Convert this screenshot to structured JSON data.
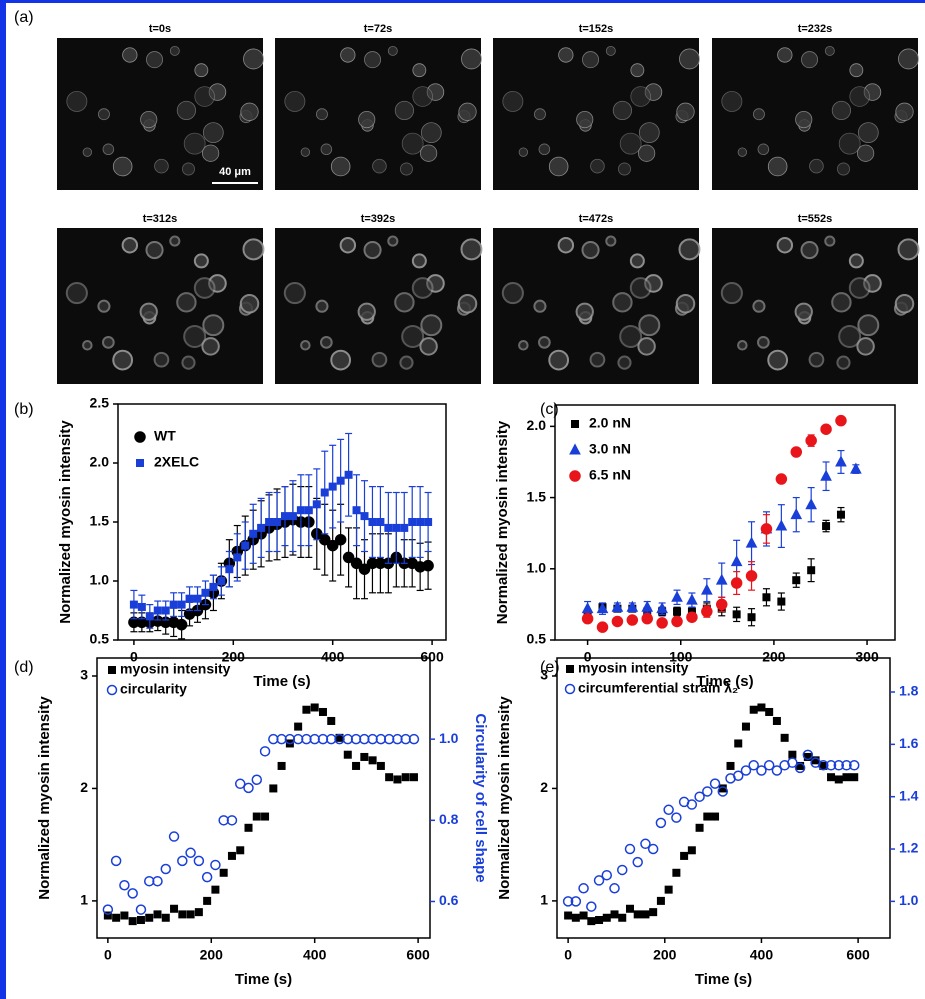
{
  "panel_labels": [
    "(a)",
    "(b)",
    "(c)",
    "(d)",
    "(e)"
  ],
  "images": {
    "titles": [
      "t=0s",
      "t=72s",
      "t=152s",
      "t=232s",
      "t=312s",
      "t=392s",
      "t=472s",
      "t=552s"
    ],
    "scale_bar": "40 μm"
  },
  "chart_data": [
    {
      "type": "scatter",
      "xlabel": "Time (s)",
      "ylabel": "Normalized myosin intensity",
      "xlim": [
        -32,
        628
      ],
      "ylim": [
        0.5,
        2.5
      ],
      "xticks": [
        0,
        200,
        400,
        600
      ],
      "yticks": [
        0.5,
        {
          "value": 1,
          "label": "1.0"
        },
        1.5,
        {
          "value": 2,
          "label": "2.0"
        },
        2.5
      ],
      "legend": "upper left",
      "series": [
        {
          "name": "WT",
          "color": "#000000",
          "marker": "circle",
          "filled": true,
          "x": [
            0,
            16,
            32,
            48,
            64,
            80,
            96,
            112,
            128,
            144,
            160,
            176,
            192,
            208,
            224,
            240,
            256,
            272,
            288,
            304,
            320,
            336,
            352,
            368,
            384,
            400,
            416,
            432,
            448,
            464,
            480,
            496,
            512,
            528,
            544,
            560,
            576,
            592
          ],
          "values": [
            0.65,
            0.65,
            0.65,
            0.66,
            0.65,
            0.65,
            0.63,
            0.72,
            0.75,
            0.8,
            0.9,
            1.0,
            1.15,
            1.25,
            1.3,
            1.35,
            1.4,
            1.45,
            1.48,
            1.5,
            1.52,
            1.5,
            1.5,
            1.4,
            1.35,
            1.3,
            1.35,
            1.2,
            1.15,
            1.1,
            1.15,
            1.15,
            1.15,
            1.2,
            1.15,
            1.15,
            1.12,
            1.13
          ],
          "errors": [
            0.08,
            0.08,
            0.08,
            0.08,
            0.1,
            0.12,
            0.12,
            0.1,
            0.1,
            0.12,
            0.15,
            0.15,
            0.2,
            0.22,
            0.25,
            0.25,
            0.28,
            0.28,
            0.3,
            0.3,
            0.3,
            0.3,
            0.3,
            0.3,
            0.3,
            0.3,
            0.3,
            0.25,
            0.3,
            0.25,
            0.25,
            0.25,
            0.25,
            0.25,
            0.2,
            0.2,
            0.2,
            0.2
          ]
        },
        {
          "name": "2XELC",
          "color": "#1a3fd8",
          "marker": "square",
          "filled": true,
          "x": [
            0,
            16,
            32,
            48,
            64,
            80,
            96,
            112,
            128,
            144,
            160,
            176,
            192,
            208,
            224,
            240,
            256,
            272,
            288,
            304,
            320,
            336,
            352,
            368,
            384,
            400,
            416,
            432,
            448,
            464,
            480,
            496,
            512,
            528,
            544,
            560,
            576,
            592
          ],
          "values": [
            0.8,
            0.78,
            0.7,
            0.75,
            0.75,
            0.8,
            0.8,
            0.85,
            0.85,
            0.9,
            0.95,
            1.0,
            1.1,
            1.2,
            1.3,
            1.4,
            1.45,
            1.5,
            1.5,
            1.55,
            1.55,
            1.6,
            1.6,
            1.65,
            1.75,
            1.8,
            1.85,
            1.9,
            1.6,
            1.55,
            1.5,
            1.5,
            1.45,
            1.45,
            1.45,
            1.5,
            1.5,
            1.5
          ],
          "errors": [
            0.12,
            0.1,
            0.1,
            0.08,
            0.08,
            0.1,
            0.1,
            0.1,
            0.1,
            0.1,
            0.1,
            0.12,
            0.15,
            0.2,
            0.2,
            0.25,
            0.25,
            0.25,
            0.25,
            0.25,
            0.3,
            0.3,
            0.3,
            0.3,
            0.35,
            0.35,
            0.35,
            0.35,
            0.3,
            0.3,
            0.3,
            0.3,
            0.3,
            0.3,
            0.3,
            0.3,
            0.3,
            0.25
          ]
        }
      ]
    },
    {
      "type": "scatter",
      "xlabel": "Time (s)",
      "ylabel": "Normalized myosin intensity",
      "xlim": [
        -35,
        330
      ],
      "ylim": [
        0.5,
        2.15
      ],
      "xticks": [
        0,
        100,
        200,
        300
      ],
      "yticks": [
        0.5,
        {
          "value": 1,
          "label": "1.0"
        },
        1.5,
        {
          "value": 2,
          "label": "2.0"
        }
      ],
      "legend": "upper left",
      "series": [
        {
          "name": "2.0 nN",
          "color": "#000000",
          "marker": "square",
          "filled": true,
          "x": [
            0,
            16,
            32,
            48,
            64,
            80,
            96,
            112,
            128,
            144,
            160,
            176,
            192,
            208,
            224,
            240,
            256,
            272
          ],
          "values": [
            0.68,
            0.73,
            0.72,
            0.72,
            0.7,
            0.7,
            0.7,
            0.7,
            0.72,
            0.72,
            0.68,
            0.66,
            0.8,
            0.77,
            0.92,
            0.99,
            1.3,
            1.38
          ],
          "errors": [
            0.03,
            0.02,
            0.02,
            0.02,
            0.02,
            0.03,
            0.03,
            0.03,
            0.04,
            0.05,
            0.05,
            0.06,
            0.06,
            0.06,
            0.05,
            0.08,
            0.04,
            0.05
          ]
        },
        {
          "name": "3.0 nN",
          "color": "#1a3fd8",
          "marker": "triangle",
          "filled": true,
          "x": [
            0,
            16,
            32,
            48,
            64,
            80,
            96,
            112,
            128,
            144,
            160,
            176,
            192,
            208,
            224,
            240,
            256,
            272,
            288
          ],
          "values": [
            0.72,
            0.72,
            0.73,
            0.73,
            0.73,
            0.72,
            0.8,
            0.78,
            0.85,
            0.92,
            1.05,
            1.18,
            1.28,
            1.3,
            1.38,
            1.45,
            1.65,
            1.75,
            1.7
          ],
          "errors": [
            0.05,
            0.04,
            0.03,
            0.03,
            0.04,
            0.04,
            0.05,
            0.05,
            0.08,
            0.12,
            0.15,
            0.15,
            0.12,
            0.15,
            0.12,
            0.12,
            0.1,
            0.08,
            0.03
          ]
        },
        {
          "name": "6.5 nN",
          "color": "#e8151b",
          "marker": "circle",
          "filled": true,
          "x": [
            0,
            16,
            32,
            48,
            64,
            80,
            96,
            112,
            128,
            144,
            160,
            176,
            192,
            208,
            224,
            240,
            256,
            272
          ],
          "values": [
            0.65,
            0.59,
            0.63,
            0.64,
            0.65,
            0.62,
            0.63,
            0.66,
            0.7,
            0.75,
            0.9,
            0.95,
            1.28,
            1.63,
            1.82,
            1.9,
            1.98,
            2.04
          ],
          "errors": [
            0.03,
            0.02,
            0.02,
            0.02,
            0.02,
            0.02,
            0.02,
            0.03,
            0.04,
            0.05,
            0.08,
            0.1,
            0.1,
            0.02,
            0.02,
            0.04,
            0.02,
            0.02
          ]
        }
      ]
    },
    {
      "type": "scatter",
      "xlabel": "Time (s)",
      "ylabel": "Normalized myosin intensity",
      "y2label": "Circularity of cell shape",
      "xlim": [
        -21,
        623
      ],
      "ylim": [
        0.67,
        3.16
      ],
      "y2lim": [
        0.51,
        1.2
      ],
      "xticks": [
        0,
        200,
        400,
        600
      ],
      "yticks": [
        1,
        2,
        3
      ],
      "y2ticks": [
        0.6,
        0.8,
        {
          "value": 1,
          "label": "1.0"
        }
      ],
      "y2color": "#1a3fd8",
      "legend": "upper left",
      "series": [
        {
          "name": "myosin intensity",
          "color": "#000000",
          "marker": "square",
          "filled": true,
          "x": [
            0,
            16,
            32,
            48,
            64,
            80,
            96,
            112,
            128,
            144,
            160,
            176,
            192,
            208,
            224,
            240,
            256,
            272,
            288,
            304,
            320,
            336,
            352,
            368,
            384,
            400,
            416,
            432,
            448,
            464,
            480,
            496,
            512,
            528,
            544,
            560,
            576,
            592
          ],
          "values": [
            0.87,
            0.85,
            0.87,
            0.82,
            0.83,
            0.85,
            0.88,
            0.85,
            0.93,
            0.88,
            0.88,
            0.9,
            1.0,
            1.1,
            1.25,
            1.4,
            1.45,
            1.65,
            1.75,
            1.75,
            2.0,
            2.2,
            2.4,
            2.55,
            2.7,
            2.72,
            2.68,
            2.6,
            2.45,
            2.3,
            2.2,
            2.28,
            2.25,
            2.2,
            2.1,
            2.08,
            2.1,
            2.1
          ]
        },
        {
          "name": "circularity",
          "color": "#1a3fd8",
          "marker": "circle",
          "filled": false,
          "axis": "y2",
          "x": [
            0,
            16,
            32,
            48,
            64,
            80,
            96,
            112,
            128,
            144,
            160,
            176,
            192,
            208,
            224,
            240,
            256,
            272,
            288,
            304,
            320,
            336,
            352,
            368,
            384,
            400,
            416,
            432,
            448,
            464,
            480,
            496,
            512,
            528,
            544,
            560,
            576,
            592
          ],
          "values": [
            0.58,
            0.7,
            0.64,
            0.62,
            0.58,
            0.65,
            0.65,
            0.68,
            0.76,
            0.7,
            0.72,
            0.7,
            0.66,
            0.69,
            0.8,
            0.8,
            0.89,
            0.88,
            0.9,
            0.97,
            1.0,
            1.0,
            1.0,
            1.0,
            1.0,
            1.0,
            1.0,
            1.0,
            1.0,
            1.0,
            1.0,
            1.0,
            1.0,
            1.0,
            1.0,
            1.0,
            1.0,
            1.0
          ]
        }
      ]
    },
    {
      "type": "scatter",
      "xlabel": "Time (s)",
      "ylabel": "Normalized myosin intensity",
      "y2label": "Circumferential strain λ₂",
      "xlim": [
        -23,
        666
      ],
      "ylim": [
        0.67,
        3.16
      ],
      "y2lim": [
        0.86,
        1.93
      ],
      "xticks": [
        0,
        200,
        400,
        600
      ],
      "yticks": [
        1,
        2,
        3
      ],
      "y2ticks": [
        {
          "value": 1,
          "label": "1.0"
        },
        1.2,
        1.4,
        1.6,
        1.8
      ],
      "y2color": "#1a3fd8",
      "legend": "upper left",
      "series": [
        {
          "name": "myosin intensity",
          "color": "#000000",
          "marker": "square",
          "filled": true,
          "x": [
            0,
            16,
            32,
            48,
            64,
            80,
            96,
            112,
            128,
            144,
            160,
            176,
            192,
            208,
            224,
            240,
            256,
            272,
            288,
            304,
            320,
            336,
            352,
            368,
            384,
            400,
            416,
            432,
            448,
            464,
            480,
            496,
            512,
            528,
            544,
            560,
            576,
            592
          ],
          "values": [
            0.87,
            0.85,
            0.87,
            0.82,
            0.83,
            0.85,
            0.88,
            0.85,
            0.93,
            0.88,
            0.88,
            0.9,
            1.0,
            1.1,
            1.25,
            1.4,
            1.45,
            1.65,
            1.75,
            1.75,
            2.0,
            2.2,
            2.4,
            2.55,
            2.7,
            2.72,
            2.68,
            2.6,
            2.45,
            2.3,
            2.2,
            2.28,
            2.25,
            2.2,
            2.1,
            2.08,
            2.1,
            2.1
          ]
        },
        {
          "name": "circumferential strain λ₂",
          "color": "#1a3fd8",
          "marker": "circle",
          "filled": false,
          "axis": "y2",
          "x": [
            0,
            16,
            32,
            48,
            64,
            80,
            96,
            112,
            128,
            144,
            160,
            176,
            192,
            208,
            224,
            240,
            256,
            272,
            288,
            304,
            320,
            336,
            352,
            368,
            384,
            400,
            416,
            432,
            448,
            464,
            480,
            496,
            512,
            528,
            544,
            560,
            576,
            592
          ],
          "values": [
            1.0,
            1.0,
            1.05,
            0.98,
            1.08,
            1.1,
            1.05,
            1.12,
            1.2,
            1.15,
            1.22,
            1.2,
            1.3,
            1.35,
            1.32,
            1.38,
            1.37,
            1.4,
            1.42,
            1.45,
            1.42,
            1.47,
            1.48,
            1.5,
            1.52,
            1.5,
            1.52,
            1.5,
            1.52,
            1.53,
            1.51,
            1.56,
            1.53,
            1.52,
            1.52,
            1.52,
            1.52,
            1.52
          ]
        }
      ]
    }
  ]
}
